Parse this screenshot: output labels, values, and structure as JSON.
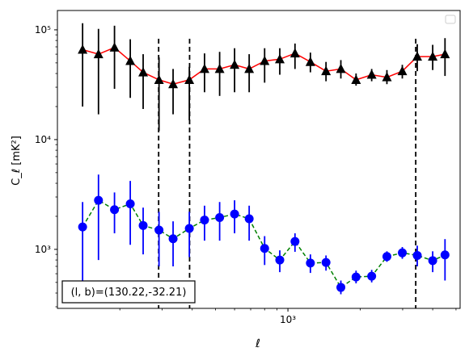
{
  "chart_data": {
    "type": "scatter",
    "xscale": "log",
    "yscale": "log",
    "xlim": [
      110,
      5200
    ],
    "ylim": [
      290,
      150000
    ],
    "xlabel": "ℓ",
    "ylabel": "C_ℓ  [mK²]",
    "x_ticks": [
      {
        "value": 1000,
        "label": "10³"
      }
    ],
    "y_ticks": [
      {
        "value": 1000,
        "label": "10³"
      },
      {
        "value": 10000,
        "label": "10⁴"
      },
      {
        "value": 100000,
        "label": "10⁵"
      }
    ],
    "annotation": "(l, b)=(130.22,-32.21)",
    "legend": {
      "placement": "top-right",
      "entries": []
    },
    "grid": false,
    "vlines": [
      290,
      390,
      3400
    ],
    "series": [
      {
        "marker": "triangle",
        "line_color": "#ff0000",
        "line_style": "solid",
        "marker_color": "#000000",
        "errorbar_color": "#000000",
        "points": [
          {
            "x": 140,
            "y": 66000,
            "lo": 20000,
            "hi": 115000
          },
          {
            "x": 163,
            "y": 60000,
            "lo": 17000,
            "hi": 102000
          },
          {
            "x": 190,
            "y": 69000,
            "lo": 29000,
            "hi": 109000
          },
          {
            "x": 221,
            "y": 52000,
            "lo": 24000,
            "hi": 82000
          },
          {
            "x": 250,
            "y": 41000,
            "lo": 19000,
            "hi": 60000
          },
          {
            "x": 291,
            "y": 35000,
            "lo": 12000,
            "hi": 56000
          },
          {
            "x": 333,
            "y": 32000,
            "lo": 17000,
            "hi": 44000
          },
          {
            "x": 389,
            "y": 35000,
            "lo": 15000,
            "hi": 46000
          },
          {
            "x": 450,
            "y": 44000,
            "lo": 27000,
            "hi": 61000
          },
          {
            "x": 520,
            "y": 44000,
            "lo": 25000,
            "hi": 63000
          },
          {
            "x": 600,
            "y": 48000,
            "lo": 27000,
            "hi": 68000
          },
          {
            "x": 690,
            "y": 44000,
            "lo": 27000,
            "hi": 60000
          },
          {
            "x": 800,
            "y": 52000,
            "lo": 33000,
            "hi": 68000
          },
          {
            "x": 925,
            "y": 54000,
            "lo": 39000,
            "hi": 68000
          },
          {
            "x": 1070,
            "y": 61000,
            "lo": 44000,
            "hi": 75000
          },
          {
            "x": 1240,
            "y": 51000,
            "lo": 41000,
            "hi": 62000
          },
          {
            "x": 1440,
            "y": 42000,
            "lo": 34000,
            "hi": 51000
          },
          {
            "x": 1660,
            "y": 44000,
            "lo": 36000,
            "hi": 53000
          },
          {
            "x": 1920,
            "y": 35000,
            "lo": 31000,
            "hi": 40000
          },
          {
            "x": 2230,
            "y": 39000,
            "lo": 34000,
            "hi": 44000
          },
          {
            "x": 2580,
            "y": 37000,
            "lo": 32000,
            "hi": 43000
          },
          {
            "x": 2990,
            "y": 42000,
            "lo": 36000,
            "hi": 48000
          },
          {
            "x": 3450,
            "y": 57000,
            "lo": 42000,
            "hi": 74000
          },
          {
            "x": 4000,
            "y": 57000,
            "lo": 43000,
            "hi": 73000
          },
          {
            "x": 4500,
            "y": 60000,
            "lo": 38000,
            "hi": 84000
          }
        ]
      },
      {
        "marker": "circle",
        "line_color": "#008000",
        "line_style": "dashed",
        "marker_color": "#0000ff",
        "errorbar_color": "#0000ff",
        "points": [
          {
            "x": 140,
            "y": 1600,
            "lo": 500,
            "hi": 2700
          },
          {
            "x": 163,
            "y": 2800,
            "lo": 800,
            "hi": 4800
          },
          {
            "x": 190,
            "y": 2300,
            "lo": 1400,
            "hi": 3300
          },
          {
            "x": 221,
            "y": 2600,
            "lo": 1100,
            "hi": 4200
          },
          {
            "x": 250,
            "y": 1650,
            "lo": 900,
            "hi": 2400
          },
          {
            "x": 291,
            "y": 1500,
            "lo": 700,
            "hi": 2200
          },
          {
            "x": 333,
            "y": 1250,
            "lo": 700,
            "hi": 1800
          },
          {
            "x": 389,
            "y": 1550,
            "lo": 850,
            "hi": 2200
          },
          {
            "x": 450,
            "y": 1850,
            "lo": 1200,
            "hi": 2500
          },
          {
            "x": 520,
            "y": 1950,
            "lo": 1200,
            "hi": 2700
          },
          {
            "x": 600,
            "y": 2100,
            "lo": 1400,
            "hi": 2800
          },
          {
            "x": 690,
            "y": 1900,
            "lo": 1200,
            "hi": 2500
          },
          {
            "x": 800,
            "y": 1020,
            "lo": 720,
            "hi": 1320
          },
          {
            "x": 925,
            "y": 800,
            "lo": 620,
            "hi": 980
          },
          {
            "x": 1070,
            "y": 1180,
            "lo": 950,
            "hi": 1400
          },
          {
            "x": 1240,
            "y": 750,
            "lo": 610,
            "hi": 900
          },
          {
            "x": 1440,
            "y": 760,
            "lo": 640,
            "hi": 880
          },
          {
            "x": 1660,
            "y": 450,
            "lo": 390,
            "hi": 520
          },
          {
            "x": 1920,
            "y": 560,
            "lo": 490,
            "hi": 640
          },
          {
            "x": 2230,
            "y": 570,
            "lo": 500,
            "hi": 650
          },
          {
            "x": 2580,
            "y": 860,
            "lo": 770,
            "hi": 960
          },
          {
            "x": 2990,
            "y": 930,
            "lo": 820,
            "hi": 1050
          },
          {
            "x": 3450,
            "y": 880,
            "lo": 700,
            "hi": 1080
          },
          {
            "x": 4000,
            "y": 790,
            "lo": 620,
            "hi": 960
          },
          {
            "x": 4500,
            "y": 890,
            "lo": 520,
            "hi": 1240
          }
        ]
      }
    ]
  }
}
